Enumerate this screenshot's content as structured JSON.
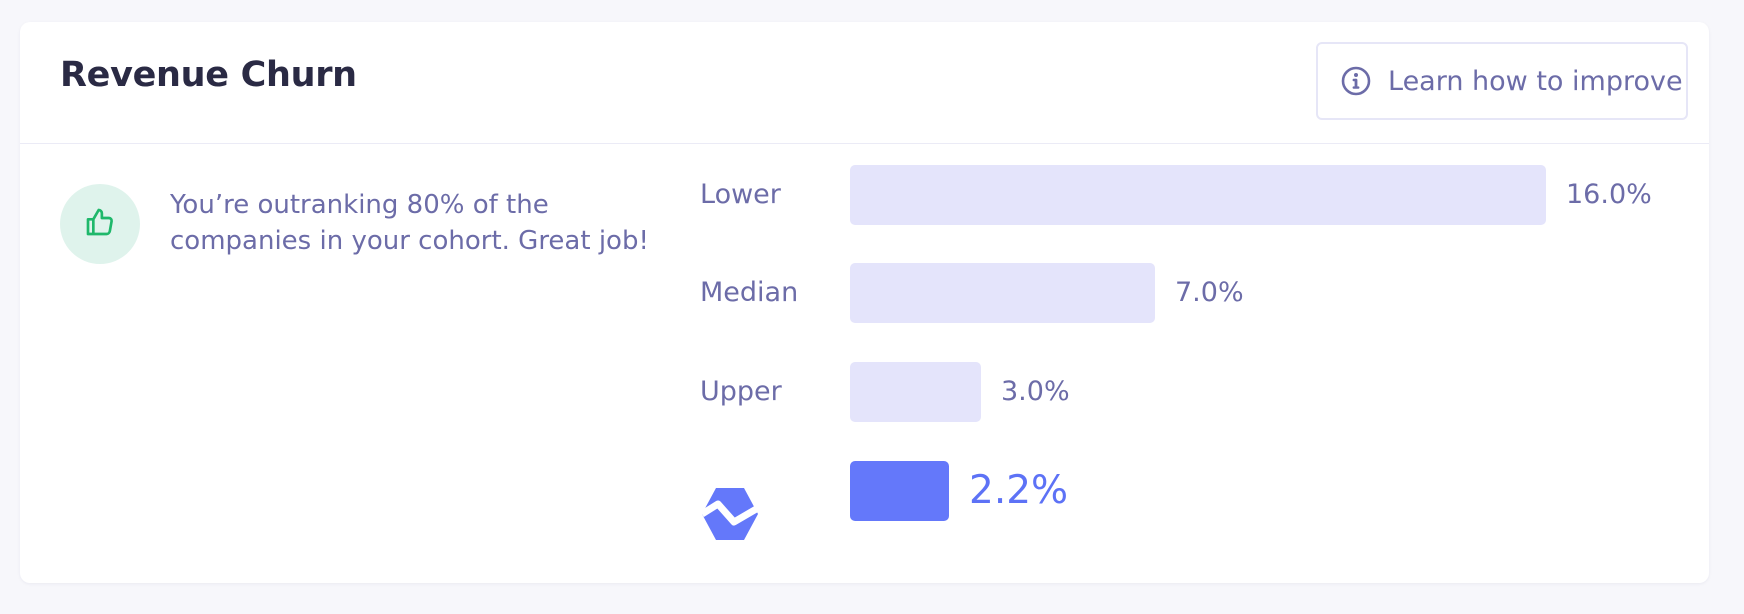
{
  "card": {
    "title": "Revenue Churn",
    "learn_button_label": "Learn how to improve",
    "message": "You’re outranking 80% of the companies in your cohort. Great job!"
  },
  "colors": {
    "bar_benchmark": "#e4e4fb",
    "bar_you": "#6478fa",
    "badge_background": "#dff3ec",
    "thumbs_up": "#1fb86b",
    "text_muted": "#6c6ca8",
    "title_text": "#2a2a44"
  },
  "icons": {
    "badge": "thumbs-up-icon",
    "button": "info-icon",
    "your_company": "baremetrics-logo-icon"
  },
  "chart_data": {
    "type": "bar",
    "orientation": "horizontal",
    "title": "",
    "xlabel": "",
    "ylabel": "",
    "unit": "%",
    "xlim": [
      0,
      16
    ],
    "categories": [
      "Lower",
      "Median",
      "Upper",
      ""
    ],
    "values": [
      16.0,
      7.0,
      3.0,
      2.2
    ],
    "value_labels": [
      "16.0%",
      "7.0%",
      "3.0%",
      "2.2%"
    ],
    "highlight_index": 3,
    "grid": false,
    "legend": "none"
  }
}
